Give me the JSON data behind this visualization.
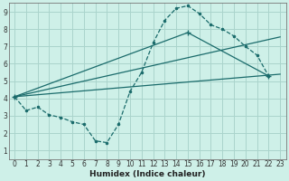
{
  "background_color": "#cef0e8",
  "grid_color": "#aad4cc",
  "line_color": "#1a6b6b",
  "xlabel": "Humidex (Indice chaleur)",
  "xlim": [
    -0.5,
    23.5
  ],
  "ylim": [
    0.5,
    9.5
  ],
  "yticks": [
    1,
    2,
    3,
    4,
    5,
    6,
    7,
    8,
    9
  ],
  "xticks": [
    0,
    1,
    2,
    3,
    4,
    5,
    6,
    7,
    8,
    9,
    10,
    11,
    12,
    13,
    14,
    15,
    16,
    17,
    18,
    19,
    20,
    21,
    22,
    23
  ],
  "curve_x": [
    0,
    1,
    2,
    3,
    4,
    5,
    6,
    7,
    8,
    9,
    10,
    11,
    12,
    13,
    14,
    15,
    16,
    17,
    18,
    19,
    20,
    21,
    22
  ],
  "curve_y": [
    4.1,
    3.3,
    3.5,
    3.05,
    2.9,
    2.65,
    2.5,
    1.55,
    1.45,
    2.5,
    4.4,
    5.5,
    7.2,
    8.5,
    9.2,
    9.35,
    8.9,
    8.25,
    8.0,
    7.6,
    7.0,
    6.5,
    5.3
  ],
  "line1_x": [
    0,
    23
  ],
  "line1_y": [
    4.1,
    5.4
  ],
  "line2_x": [
    0,
    15,
    22
  ],
  "line2_y": [
    4.1,
    7.8,
    5.3
  ],
  "line3_x": [
    0,
    23
  ],
  "line3_y": [
    4.1,
    7.55
  ]
}
